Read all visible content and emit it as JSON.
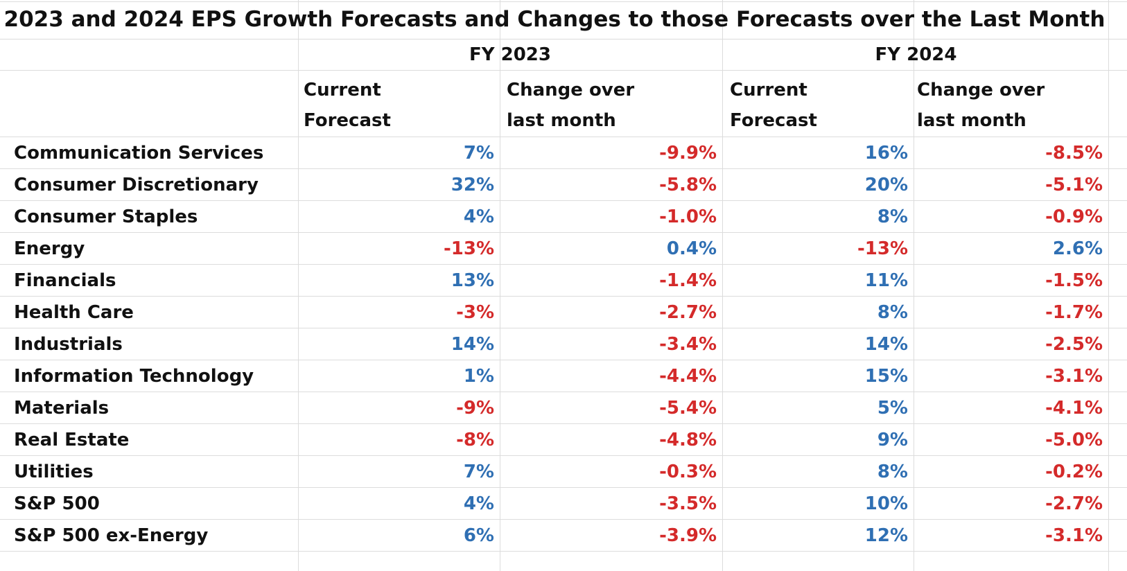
{
  "title": "2023 and 2024 EPS Growth Forecasts and Changes to those Forecasts over the Last Month",
  "colors": {
    "positive": "#2f6fb3",
    "negative": "#d42a2a",
    "gridline": "#dcdcdc"
  },
  "years": [
    "FY 2023",
    "FY 2024"
  ],
  "subheaders": [
    {
      "line1": "Current",
      "line2": "Forecast"
    },
    {
      "line1": "Change over",
      "line2": "last month"
    },
    {
      "line1": "Current",
      "line2": "Forecast"
    },
    {
      "line1": "Change over",
      "line2": "last month"
    }
  ],
  "rows": [
    {
      "sector": "Communication Services",
      "values": [
        "7%",
        "-9.9%",
        "16%",
        "-8.5%"
      ]
    },
    {
      "sector": "Consumer Discretionary",
      "values": [
        "32%",
        "-5.8%",
        "20%",
        "-5.1%"
      ]
    },
    {
      "sector": "Consumer Staples",
      "values": [
        "4%",
        "-1.0%",
        "8%",
        "-0.9%"
      ]
    },
    {
      "sector": "Energy",
      "values": [
        "-13%",
        "0.4%",
        "-13%",
        "2.6%"
      ]
    },
    {
      "sector": "Financials",
      "values": [
        "13%",
        "-1.4%",
        "11%",
        "-1.5%"
      ]
    },
    {
      "sector": "Health Care",
      "values": [
        "-3%",
        "-2.7%",
        "8%",
        "-1.7%"
      ]
    },
    {
      "sector": "Industrials",
      "values": [
        "14%",
        "-3.4%",
        "14%",
        "-2.5%"
      ]
    },
    {
      "sector": "Information Technology",
      "values": [
        "1%",
        "-4.4%",
        "15%",
        "-3.1%"
      ]
    },
    {
      "sector": "Materials",
      "values": [
        "-9%",
        "-5.4%",
        "5%",
        "-4.1%"
      ]
    },
    {
      "sector": "Real Estate",
      "values": [
        "-8%",
        "-4.8%",
        "9%",
        "-5.0%"
      ]
    },
    {
      "sector": "Utilities",
      "values": [
        "7%",
        "-0.3%",
        "8%",
        "-0.2%"
      ]
    },
    {
      "sector": "S&P 500",
      "values": [
        "4%",
        "-3.5%",
        "10%",
        "-2.7%"
      ]
    },
    {
      "sector": "S&P 500 ex-Energy",
      "values": [
        "6%",
        "-3.9%",
        "12%",
        "-3.1%"
      ]
    }
  ]
}
